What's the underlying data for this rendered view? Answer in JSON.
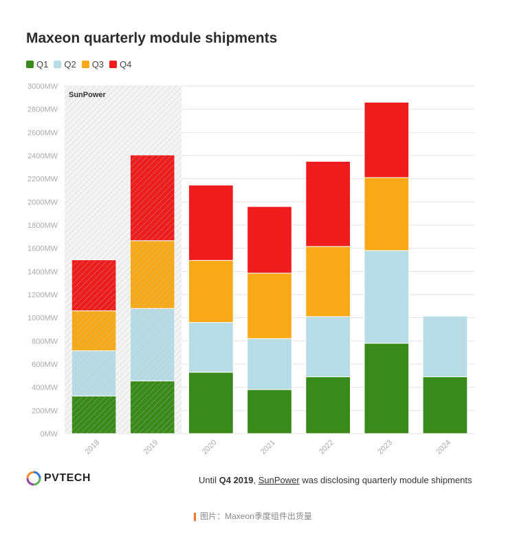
{
  "title": "Maxeon quarterly module shipments",
  "colors": {
    "Q1": "#3a8a1b",
    "Q2": "#b8dce6",
    "Q3": "#f7a917",
    "Q4": "#ee1c1c",
    "grid": "#e2e2e2",
    "axis_text": "#aaaaaa"
  },
  "legend": [
    {
      "label": "Q1",
      "color": "#3a8a1b"
    },
    {
      "label": "Q2",
      "color": "#b8dce6"
    },
    {
      "label": "Q3",
      "color": "#f7a917"
    },
    {
      "label": "Q4",
      "color": "#ee1c1c"
    }
  ],
  "chart_data": {
    "type": "bar",
    "stacked": true,
    "categories": [
      "2018",
      "2019",
      "2020",
      "2021",
      "2022",
      "2023",
      "2024"
    ],
    "series": [
      {
        "name": "Q1",
        "values": [
          325,
          455,
          530,
          380,
          490,
          780,
          490
        ]
      },
      {
        "name": "Q2",
        "values": [
          390,
          625,
          430,
          440,
          520,
          800,
          525
        ]
      },
      {
        "name": "Q3",
        "values": [
          345,
          585,
          535,
          565,
          605,
          630,
          0
        ]
      },
      {
        "name": "Q4",
        "values": [
          440,
          740,
          650,
          575,
          735,
          650,
          0
        ]
      }
    ],
    "ylim": [
      0,
      3000
    ],
    "yticks": [
      0,
      200,
      400,
      600,
      800,
      1000,
      1200,
      1400,
      1600,
      1800,
      2000,
      2200,
      2400,
      2600,
      2800,
      3000
    ],
    "ytick_suffix": "MW",
    "grid": true,
    "legend_position": "top-left",
    "shaded_region": {
      "label": "SunPower",
      "categories": [
        "2018",
        "2019"
      ]
    }
  },
  "footer": {
    "logo_text": "PVTECH",
    "note_prefix": "Until ",
    "note_bold": "Q4 2019",
    "note_sep": ", ",
    "note_link": "SunPower",
    "note_suffix": " was disclosing quarterly module shipments"
  },
  "caption": "图片：Maxeon季度组件出货量"
}
